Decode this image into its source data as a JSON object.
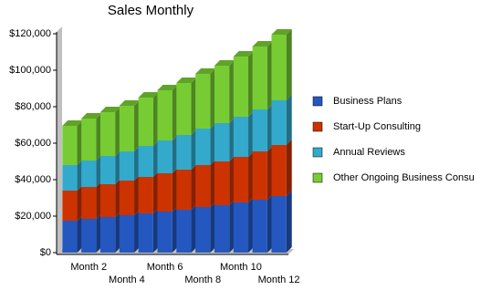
{
  "chart_data": {
    "type": "bar3d_stacked",
    "title": "Sales Monthly",
    "categories": [
      null,
      "Month 2",
      null,
      "Month 4",
      null,
      "Month 6",
      null,
      "Month 8",
      null,
      "Month 10",
      null,
      "Month 12"
    ],
    "series": [
      {
        "name": "Business Plans",
        "color": "#2458c0",
        "values": [
          17500,
          18500,
          19500,
          20500,
          21500,
          22500,
          23500,
          25000,
          26000,
          27500,
          29000,
          31000
        ]
      },
      {
        "name": "Start-Up Consulting",
        "color": "#cc3300",
        "values": [
          16500,
          17500,
          18000,
          19000,
          20000,
          21000,
          22000,
          23000,
          24000,
          25000,
          26500,
          28000
        ]
      },
      {
        "name": "Annual Reviews",
        "color": "#33aacc",
        "values": [
          14000,
          14500,
          15500,
          16000,
          17000,
          18000,
          19000,
          20000,
          21000,
          22000,
          23000,
          24500
        ]
      },
      {
        "name": "Other Ongoing Business Consu",
        "color": "#77cc33",
        "values": [
          21500,
          23000,
          24000,
          25000,
          26500,
          27500,
          28500,
          30000,
          31500,
          33000,
          34500,
          36000
        ]
      }
    ],
    "ylim": [
      0,
      120000
    ],
    "yticks": [
      {
        "value": 0,
        "label": "$0"
      },
      {
        "value": 20000,
        "label": "$20,000"
      },
      {
        "value": 40000,
        "label": "$40,000"
      },
      {
        "value": 60000,
        "label": "$60,000"
      },
      {
        "value": 80000,
        "label": "$80,000"
      },
      {
        "value": 100000,
        "label": "$100,000"
      },
      {
        "value": 120000,
        "label": "$120,000"
      }
    ],
    "legend": "right"
  }
}
